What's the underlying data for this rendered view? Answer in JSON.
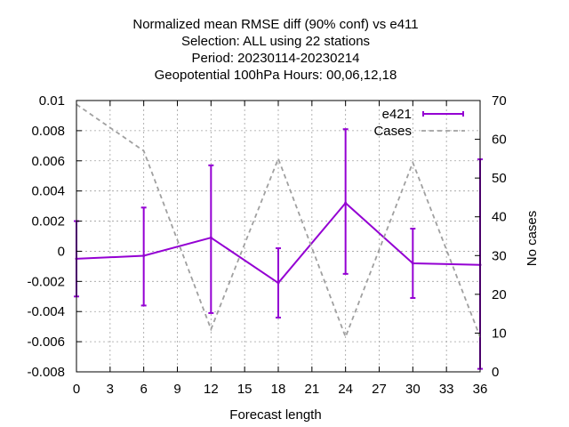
{
  "chart_data": {
    "type": "line",
    "title_lines": [
      "Normalized mean RMSE diff (90% conf) vs e411",
      "Selection: ALL using    22 stations",
      "Period: 20230114-20230214",
      "Geopotential 100hPa   Hours:  00,06,12,18"
    ],
    "xlabel": "Forecast length",
    "ylabel": "",
    "y2label": "No cases",
    "xlim": [
      0,
      36
    ],
    "ylim": [
      -0.008,
      0.01
    ],
    "y2lim": [
      0,
      70
    ],
    "xticks": [
      0,
      3,
      6,
      9,
      12,
      15,
      18,
      21,
      24,
      27,
      30,
      33,
      36
    ],
    "yticks": [
      -0.008,
      -0.006,
      -0.004,
      -0.002,
      0,
      0.002,
      0.004,
      0.006,
      0.008,
      0.01
    ],
    "ytick_labels": [
      "-0.008",
      "-0.006",
      "-0.004",
      "-0.002",
      "0",
      "0.002",
      "0.004",
      "0.006",
      "0.008",
      "0.01"
    ],
    "y2ticks": [
      0,
      10,
      20,
      30,
      40,
      50,
      60,
      70
    ],
    "grid": true,
    "legend_position": "top-right",
    "series": [
      {
        "name": "e421",
        "axis": "y1",
        "color": "#9400d3",
        "style": "errorbars",
        "x": [
          0,
          6,
          12,
          18,
          24,
          30,
          36
        ],
        "y": [
          -0.0005,
          -0.0003,
          0.0009,
          -0.0021,
          0.0032,
          -0.0008,
          -0.0009
        ],
        "y_low": [
          -0.003,
          -0.0036,
          -0.0041,
          -0.0044,
          -0.0015,
          -0.0031,
          -0.0078
        ],
        "y_high": [
          0.002,
          0.0029,
          0.0057,
          0.0002,
          0.0081,
          0.0015,
          0.0061
        ]
      },
      {
        "name": "Cases",
        "axis": "y2",
        "color": "#a0a0a0",
        "style": "dashed",
        "x": [
          0,
          6,
          12,
          18,
          24,
          30,
          36
        ],
        "y": [
          69,
          57,
          11,
          55,
          9,
          54,
          9
        ]
      }
    ]
  }
}
